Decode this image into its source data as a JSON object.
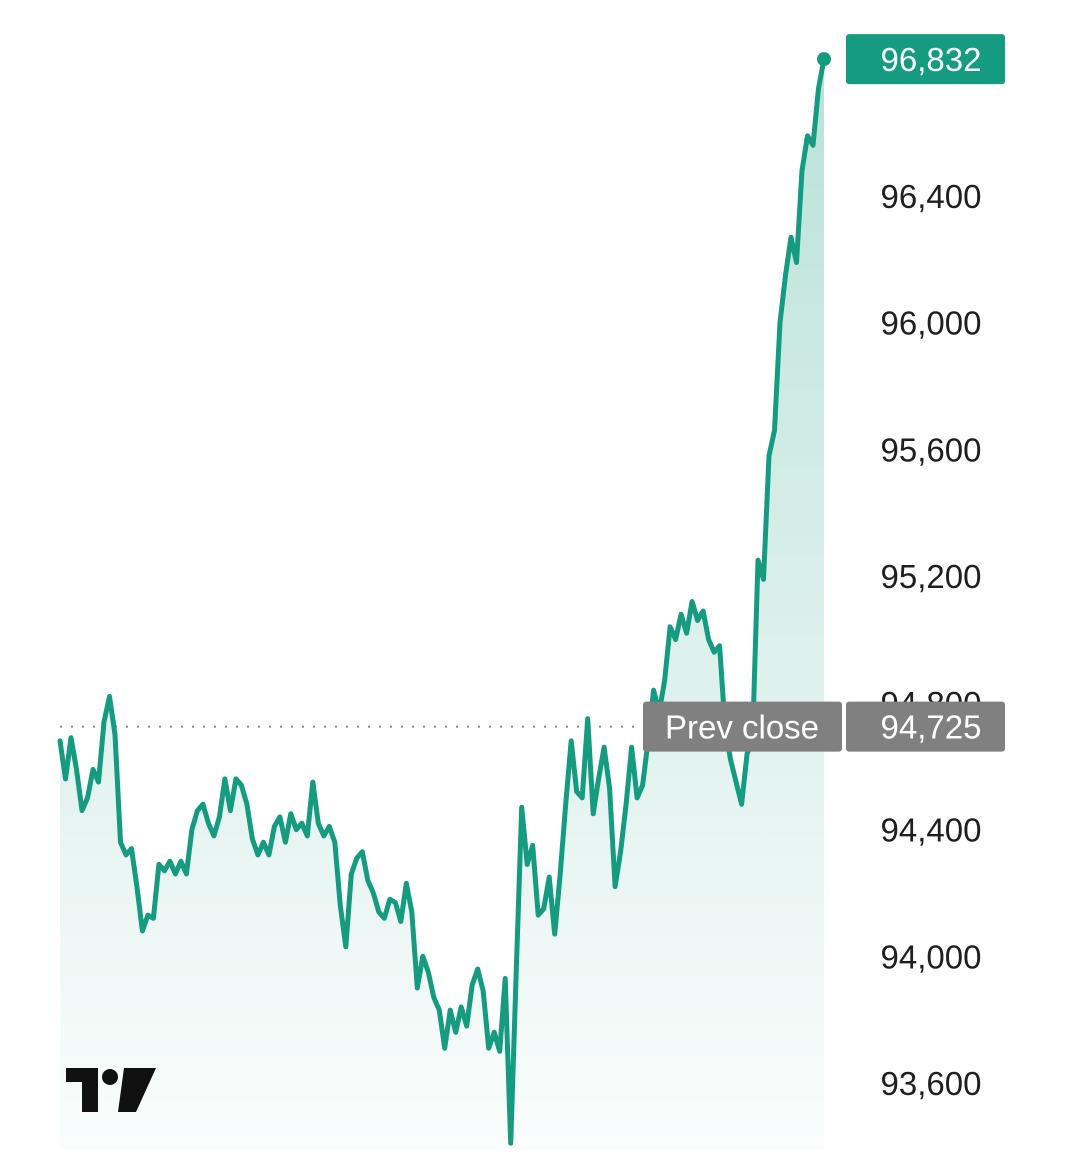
{
  "chart_data": {
    "type": "area",
    "title": "",
    "xlabel": "",
    "ylabel": "",
    "ylim": [
      93400,
      97000
    ],
    "y_ticks": [
      93600,
      94000,
      94400,
      94800,
      95200,
      95600,
      96000,
      96400
    ],
    "y_tick_labels": [
      "93,600",
      "94,000",
      "94,400",
      "94,800",
      "95,200",
      "95,600",
      "96,000",
      "96,400"
    ],
    "grid": false,
    "line_color": "#159b7f",
    "fill_color": "#159b7f",
    "last_value": 96832,
    "last_value_label": "96,832",
    "prev_close": 94725,
    "prev_close_label": "94,725",
    "prev_close_text": "Prev close",
    "series": [
      {
        "values": [
          94680,
          94560,
          94690,
          94590,
          94460,
          94500,
          94590,
          94550,
          94740,
          94820,
          94700,
          94360,
          94320,
          94340,
          94220,
          94080,
          94130,
          94120,
          94290,
          94270,
          94300,
          94260,
          94300,
          94260,
          94400,
          94460,
          94480,
          94420,
          94380,
          94440,
          94560,
          94460,
          94560,
          94540,
          94480,
          94370,
          94320,
          94360,
          94320,
          94410,
          94440,
          94360,
          94450,
          94400,
          94420,
          94380,
          94550,
          94420,
          94380,
          94410,
          94360,
          94160,
          94030,
          94260,
          94310,
          94330,
          94240,
          94200,
          94140,
          94120,
          94180,
          94170,
          94110,
          94230,
          94140,
          93900,
          94000,
          93950,
          93870,
          93830,
          93710,
          93830,
          93760,
          93840,
          93780,
          93910,
          93960,
          93890,
          93710,
          93760,
          93700,
          93930,
          93410,
          93950,
          94470,
          94290,
          94350,
          94130,
          94150,
          94250,
          94070,
          94260,
          94480,
          94680,
          94520,
          94500,
          94750,
          94450,
          94560,
          94660,
          94530,
          94220,
          94330,
          94480,
          94660,
          94500,
          94540,
          94680,
          94840,
          94770,
          94870,
          95040,
          95000,
          95080,
          95020,
          95120,
          95060,
          95090,
          95000,
          94960,
          94980,
          94720,
          94620,
          94550,
          94480,
          94640,
          94680,
          95250,
          95190,
          95580,
          95660,
          96000,
          96150,
          96270,
          96190,
          96480,
          96590,
          96560,
          96740,
          96832
        ]
      }
    ]
  }
}
